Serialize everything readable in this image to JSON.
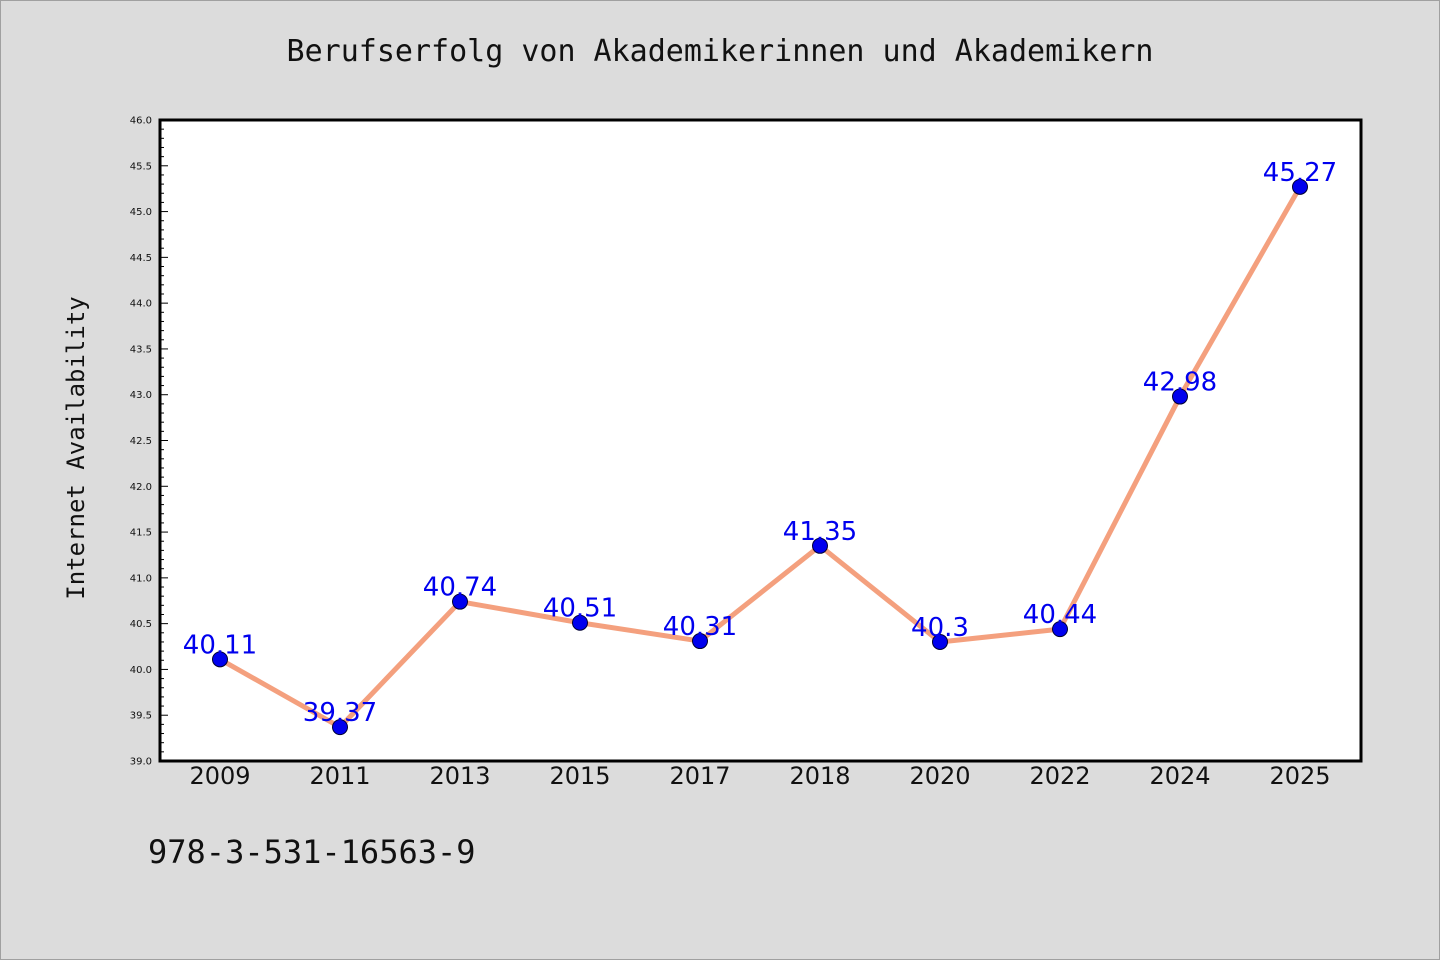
{
  "chart_data": {
    "type": "line",
    "title": "Berufserfolg von Akademikerinnen und Akademikern",
    "ylabel": "Internet Availability",
    "xlabel": "",
    "categories": [
      "2009",
      "2011",
      "2013",
      "2015",
      "2017",
      "2018",
      "2020",
      "2022",
      "2024",
      "2025"
    ],
    "values": [
      40.11,
      39.37,
      40.74,
      40.51,
      40.31,
      41.35,
      40.3,
      40.44,
      42.98,
      45.27
    ],
    "data_labels": [
      "40.11",
      "39.37",
      "40.74",
      "40.51",
      "40.31",
      "41.35",
      "40.3",
      "40.44",
      "42.98",
      "45.27"
    ],
    "ylim": [
      39.0,
      46.0
    ],
    "yticks": [
      "39.0",
      "39.5",
      "40.0",
      "40.5",
      "41.0",
      "41.5",
      "42.0",
      "42.5",
      "43.0",
      "43.5",
      "44.0",
      "44.5",
      "45.0",
      "45.5",
      "46.0"
    ],
    "grid": false,
    "colors": {
      "line": "#f4a07e",
      "marker": "#0000ee",
      "label": "#0000ee"
    }
  },
  "footer": {
    "isbn": "978-3-531-16563-9"
  }
}
